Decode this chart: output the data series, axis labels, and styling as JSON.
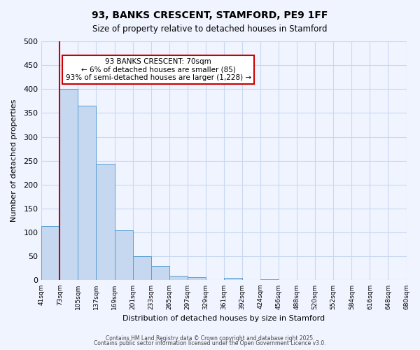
{
  "title1": "93, BANKS CRESCENT, STAMFORD, PE9 1FF",
  "title2": "Size of property relative to detached houses in Stamford",
  "xlabel": "Distribution of detached houses by size in Stamford",
  "ylabel": "Number of detached properties",
  "footer1": "Contains HM Land Registry data © Crown copyright and database right 2025.",
  "footer2": "Contains public sector information licensed under the Open Government Licence v3.0.",
  "bin_labels": [
    "41sqm",
    "73sqm",
    "105sqm",
    "137sqm",
    "169sqm",
    "201sqm",
    "233sqm",
    "265sqm",
    "297sqm",
    "329sqm",
    "361sqm",
    "392sqm",
    "424sqm",
    "456sqm",
    "488sqm",
    "520sqm",
    "552sqm",
    "584sqm",
    "616sqm",
    "648sqm",
    "680sqm"
  ],
  "bar_values": [
    113,
    400,
    365,
    243,
    105,
    50,
    30,
    9,
    6,
    0,
    5,
    0,
    2,
    0,
    0,
    0,
    0,
    0,
    0,
    0
  ],
  "bar_color": "#c5d8f0",
  "bar_edge_color": "#5a9fd4",
  "vline_x": 1,
  "vline_color": "#cc0000",
  "ylim": [
    0,
    500
  ],
  "yticks": [
    0,
    50,
    100,
    150,
    200,
    250,
    300,
    350,
    400,
    450,
    500
  ],
  "annotation_title": "93 BANKS CRESCENT: 70sqm",
  "annotation_line1": "← 6% of detached houses are smaller (85)",
  "annotation_line2": "93% of semi-detached houses are larger (1,228) →",
  "annotation_box_color": "#ffffff",
  "annotation_box_edge": "#cc0000",
  "bg_color": "#f0f4ff",
  "grid_color": "#c8d8f0"
}
